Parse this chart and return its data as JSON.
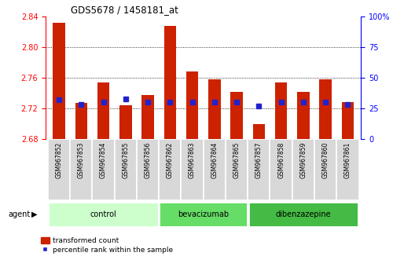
{
  "title": "GDS5678 / 1458181_at",
  "samples": [
    "GSM967852",
    "GSM967853",
    "GSM967854",
    "GSM967855",
    "GSM967856",
    "GSM967862",
    "GSM967863",
    "GSM967864",
    "GSM967865",
    "GSM967857",
    "GSM967858",
    "GSM967859",
    "GSM967860",
    "GSM967861"
  ],
  "transformed_count": [
    2.832,
    2.727,
    2.754,
    2.724,
    2.738,
    2.828,
    2.768,
    2.758,
    2.742,
    2.7,
    2.754,
    2.742,
    2.758,
    2.728
  ],
  "percentile_rank": [
    32,
    28,
    30,
    33,
    30,
    30,
    30,
    30,
    30,
    27,
    30,
    30,
    30,
    28
  ],
  "ylim_left": [
    2.68,
    2.84
  ],
  "ylim_right": [
    0,
    100
  ],
  "bar_color": "#cc2200",
  "dot_color": "#2222cc",
  "bar_width": 0.55,
  "yticks_left": [
    2.68,
    2.72,
    2.76,
    2.8,
    2.84
  ],
  "yticks_right": [
    0,
    25,
    50,
    75,
    100
  ],
  "group_data": [
    {
      "label": "control",
      "start": 0,
      "end": 4,
      "color": "#ccffcc"
    },
    {
      "label": "bevacizumab",
      "start": 5,
      "end": 8,
      "color": "#66dd66"
    },
    {
      "label": "dibenzazepine",
      "start": 9,
      "end": 13,
      "color": "#44bb44"
    }
  ],
  "agent_label": "agent",
  "legend_labels": [
    "transformed count",
    "percentile rank within the sample"
  ]
}
